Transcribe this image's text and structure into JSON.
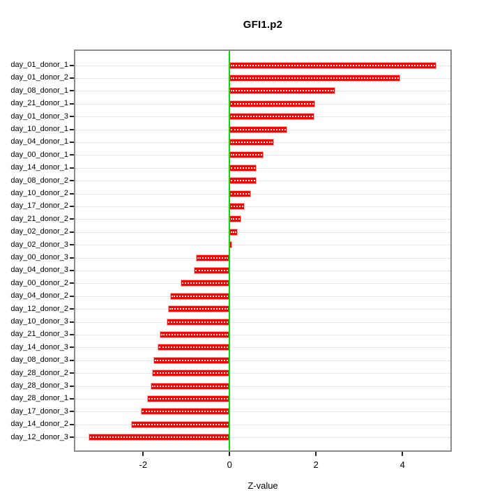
{
  "chart_data": {
    "type": "bar",
    "orientation": "horizontal",
    "title": "GFI1.p2",
    "xlabel": "Z-value",
    "ylabel": "",
    "legend": "none",
    "grid": "horizontal-dotted",
    "zero_line_x": 0,
    "xlim": [
      -3.57,
      5.11
    ],
    "xticks": [
      -2,
      0,
      2,
      4
    ],
    "categories": [
      "day_01_donor_1",
      "day_01_donor_2",
      "day_08_donor_1",
      "day_21_donor_1",
      "day_01_donor_3",
      "day_10_donor_1",
      "day_04_donor_1",
      "day_00_donor_1",
      "day_14_donor_1",
      "day_08_donor_2",
      "day_10_donor_2",
      "day_17_donor_2",
      "day_21_donor_2",
      "day_02_donor_2",
      "day_02_donor_3",
      "day_00_donor_3",
      "day_04_donor_3",
      "day_00_donor_2",
      "day_04_donor_2",
      "day_12_donor_2",
      "day_10_donor_3",
      "day_21_donor_3",
      "day_14_donor_3",
      "day_08_donor_3",
      "day_28_donor_2",
      "day_28_donor_3",
      "day_28_donor_1",
      "day_17_donor_3",
      "day_14_donor_2",
      "day_12_donor_3"
    ],
    "values": [
      4.79,
      3.95,
      2.45,
      1.98,
      1.96,
      1.33,
      1.03,
      0.78,
      0.63,
      0.62,
      0.5,
      0.35,
      0.27,
      0.19,
      0.06,
      -0.78,
      -0.82,
      -1.13,
      -1.37,
      -1.43,
      -1.45,
      -1.62,
      -1.67,
      -1.76,
      -1.8,
      -1.83,
      -1.91,
      -2.06,
      -2.28,
      -3.26
    ],
    "colors": {
      "bar_fill": "#ff0000",
      "bar_border": "#ffabab",
      "bar_center_dots": "#ffffff",
      "zero_line": "#00e000",
      "gridline": "#d4d4d4",
      "plot_border": "#8b8b8b",
      "text": "#000000",
      "background": "#ffffff"
    }
  }
}
